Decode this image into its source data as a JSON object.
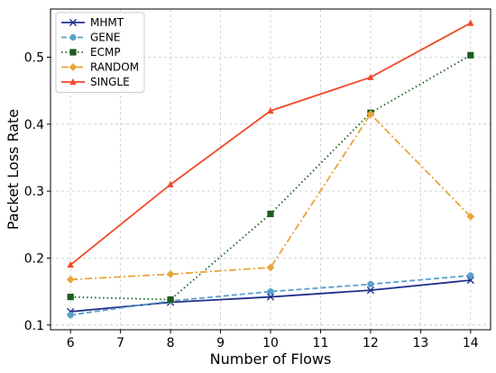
{
  "chart_data": {
    "type": "line",
    "xlabel": "Number of Flows",
    "ylabel": "Packet Loss Rate",
    "xlim": [
      5.6,
      14.4
    ],
    "ylim": [
      0.093,
      0.572
    ],
    "xticks": [
      6,
      7,
      8,
      9,
      10,
      11,
      12,
      13,
      14
    ],
    "yticks": [
      0.1,
      0.2,
      0.3,
      0.4,
      0.5
    ],
    "xtick_labels": [
      "6",
      "7",
      "8",
      "9",
      "10",
      "11",
      "12",
      "13",
      "14"
    ],
    "ytick_labels": [
      "0.1",
      "0.2",
      "0.3",
      "0.4",
      "0.5"
    ],
    "grid": true,
    "legend_position": "top-left",
    "series": [
      {
        "name": "MHMT",
        "color": "#1f2f8a",
        "dash": "solid",
        "marker": "x",
        "x": [
          6,
          8,
          10,
          12,
          14
        ],
        "y": [
          0.12,
          0.134,
          0.142,
          0.152,
          0.167
        ]
      },
      {
        "name": "GENE",
        "color": "#5aa0c8",
        "dash": "dashed",
        "marker": "circle",
        "x": [
          6,
          8,
          10,
          12,
          14
        ],
        "y": [
          0.115,
          0.136,
          0.15,
          0.161,
          0.174
        ]
      },
      {
        "name": "ECMP",
        "color": "#1a5e1f",
        "dash": "dotted",
        "marker": "square",
        "x": [
          6,
          8,
          10,
          12,
          14
        ],
        "y": [
          0.142,
          0.138,
          0.266,
          0.417,
          0.503
        ]
      },
      {
        "name": "RANDOM",
        "color": "#e8a53a",
        "dash": "dashdot",
        "marker": "diamond",
        "x": [
          6,
          8,
          10,
          12,
          14
        ],
        "y": [
          0.168,
          0.176,
          0.186,
          0.415,
          0.262
        ]
      },
      {
        "name": "SINGLE",
        "color": "#f04a2a",
        "dash": "solid",
        "marker": "triangle",
        "x": [
          6,
          8,
          10,
          12,
          14
        ],
        "y": [
          0.19,
          0.31,
          0.42,
          0.47,
          0.551
        ]
      }
    ]
  }
}
